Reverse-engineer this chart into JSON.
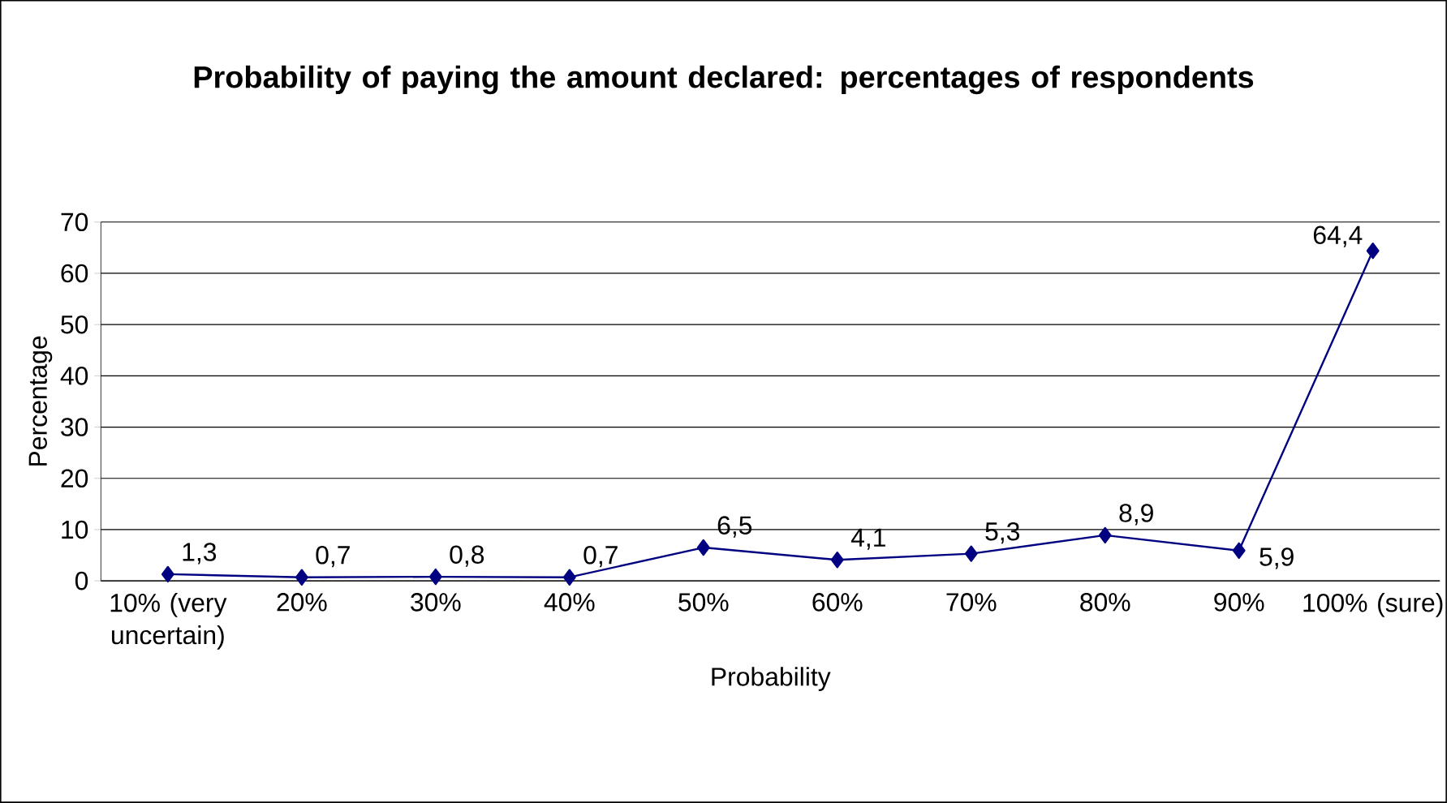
{
  "chart_data": {
    "type": "line",
    "title": "Probability of paying the amount declared: percentages of respondents",
    "xlabel": "Probability",
    "ylabel": "Percentage",
    "categories": [
      "10% (very uncertain)",
      "20%",
      "30%",
      "40%",
      "50%",
      "60%",
      "70%",
      "80%",
      "90%",
      "100% (sure)"
    ],
    "series": [
      {
        "color": "#000080",
        "values": [
          1.3,
          0.7,
          0.8,
          0.7,
          6.5,
          4.1,
          5.3,
          8.9,
          5.9,
          64.4
        ],
        "value_labels": [
          "1,3",
          "0,7",
          "0,8",
          "0,7",
          "6,5",
          "4,1",
          "5,3",
          "8,9",
          "5,9",
          "64,4"
        ]
      }
    ],
    "ylim": [
      0,
      70
    ],
    "yticks": [
      0,
      10,
      20,
      30,
      40,
      50,
      60,
      70
    ],
    "grid": "y",
    "marker": "diamond",
    "line_style": "solid"
  }
}
